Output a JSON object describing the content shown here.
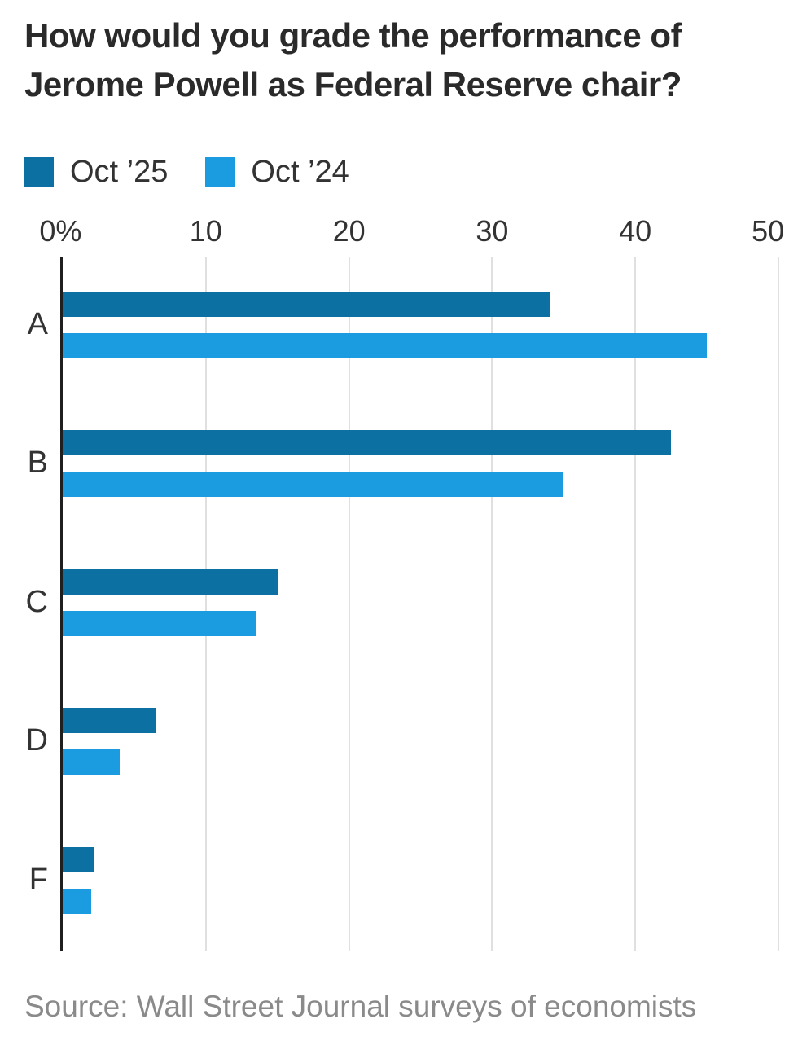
{
  "title": "How would you grade the performance of Jerome Powell as Federal Reserve chair?",
  "legend": [
    {
      "label": "Oct ’25",
      "color": "#0d70a3"
    },
    {
      "label": "Oct ’24",
      "color": "#1b9ce1"
    }
  ],
  "chart_data": {
    "type": "bar",
    "orientation": "horizontal",
    "title": "How would you grade the performance of Jerome Powell as Federal Reserve chair?",
    "categories": [
      "A",
      "B",
      "C",
      "D",
      "F"
    ],
    "series": [
      {
        "name": "Oct ’25",
        "color": "#0d70a3",
        "values": [
          34,
          42.5,
          15,
          6.5,
          2.2
        ]
      },
      {
        "name": "Oct ’24",
        "color": "#1b9ce1",
        "values": [
          45,
          35,
          13.5,
          4,
          2
        ]
      }
    ],
    "xlabel": "",
    "ylabel": "",
    "xlim": [
      0,
      50
    ],
    "x_tick_labels": [
      "0%",
      "10",
      "20",
      "30",
      "40",
      "50"
    ],
    "x_tick_values": [
      0,
      10,
      20,
      30,
      40,
      50
    ],
    "grid": true,
    "legend_position": "top"
  },
  "source": "Source: Wall Street Journal surveys of economists",
  "colors": {
    "axis_line": "#1f1f1f",
    "gridline": "#e0e0e0",
    "title_text": "#2a2a2a",
    "label_text": "#333333",
    "source_text": "#8a8a8a",
    "background": "#ffffff"
  }
}
